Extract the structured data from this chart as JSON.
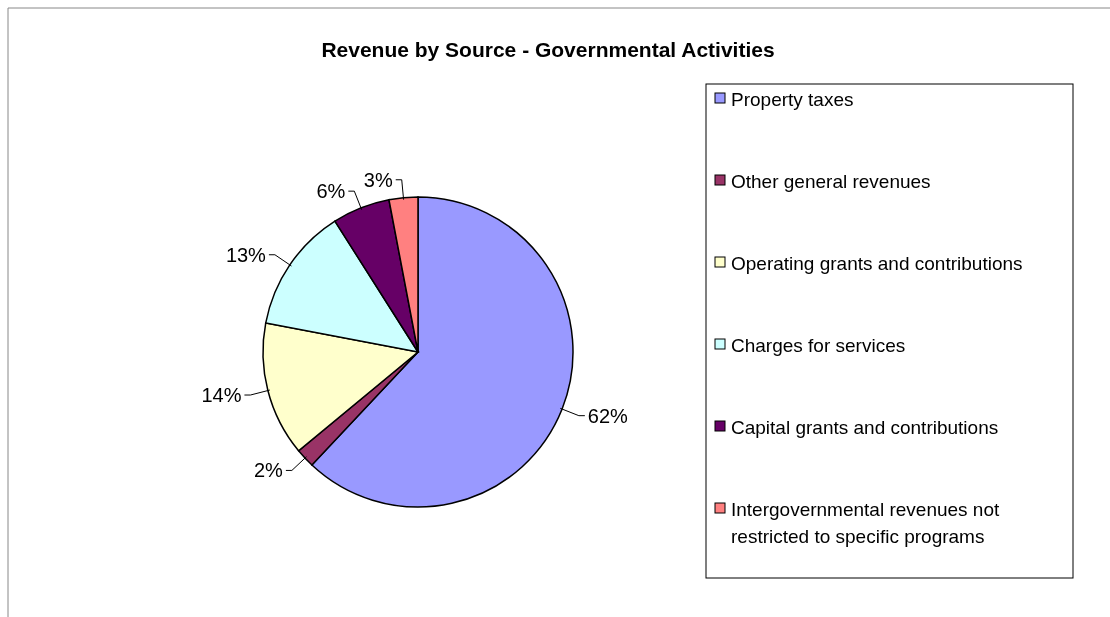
{
  "chart_data": {
    "type": "pie",
    "title": "Revenue by Source - Governmental Activities",
    "categories": [
      "Property taxes",
      "Other general revenues",
      "Operating grants and contributions",
      "Charges for services",
      "Capital grants and contributions",
      "Intergovernmental revenues not restricted to specific programs"
    ],
    "values": [
      62,
      2,
      14,
      13,
      6,
      3
    ],
    "colors": [
      "#9999ff",
      "#993366",
      "#ffffcc",
      "#ccffff",
      "#660066",
      "#ff8080"
    ],
    "value_labels": [
      "62%",
      "2%",
      "14%",
      "13%",
      "6%",
      "3%"
    ],
    "legend": "right"
  }
}
